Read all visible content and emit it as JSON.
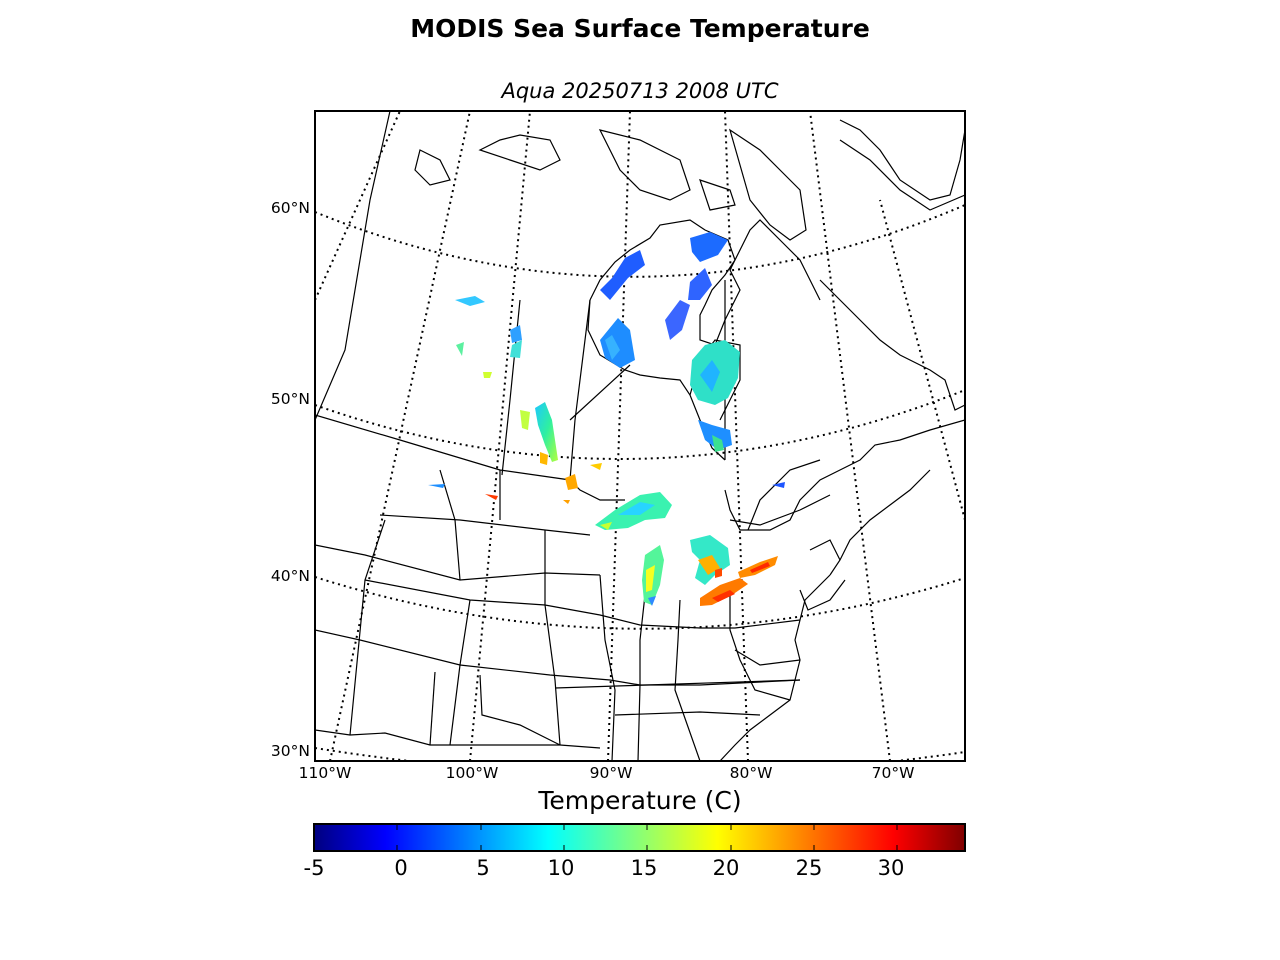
{
  "title": "MODIS Sea Surface Temperature",
  "subtitle": "Aqua 20250713 2008 UTC",
  "latitude_labels": [
    "60°N",
    "50°N",
    "40°N",
    "30°N"
  ],
  "longitude_labels": [
    "110°W",
    "100°W",
    "90°W",
    "80°W",
    "70°W"
  ],
  "colorbar": {
    "label": "Temperature (C)",
    "min": -5,
    "max": 34,
    "colormap": "jet",
    "ticks": [
      "-5",
      "0",
      "5",
      "10",
      "15",
      "20",
      "25",
      "30"
    ]
  },
  "map": {
    "projection": "lambert-conformal",
    "lat_range": [
      30,
      60
    ],
    "lon_range": [
      -110,
      -65
    ],
    "graticule": "dotted",
    "features": [
      "coastlines",
      "country borders",
      "state and province borders",
      "Great Lakes",
      "Hudson Bay",
      "Lake Winnipeg"
    ]
  }
}
